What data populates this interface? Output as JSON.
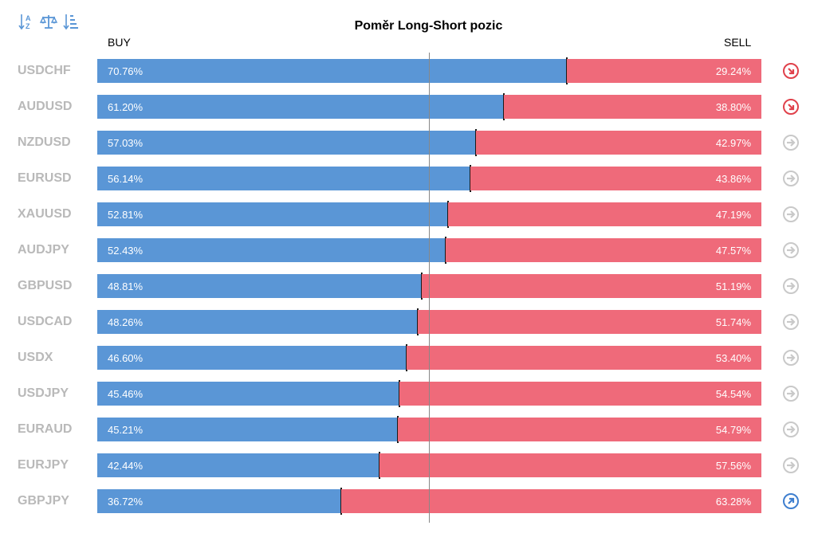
{
  "title": "Poměr Long-Short pozic",
  "buy_label": "BUY",
  "sell_label": "SELL",
  "toolbar": [
    {
      "icon": "sort-alpha-icon"
    },
    {
      "icon": "balance-scale-icon"
    },
    {
      "icon": "sort-amount-icon"
    }
  ],
  "colors": {
    "buy": "#5a96d6",
    "sell": "#ef6a7a",
    "trend_down": "#e0414b",
    "trend_neutral": "#c9c9c9",
    "trend_up": "#3f7fcf"
  },
  "chart_data": {
    "type": "bar",
    "categories": [
      "USDCHF",
      "AUDUSD",
      "NZDUSD",
      "EURUSD",
      "XAUUSD",
      "AUDJPY",
      "GBPUSD",
      "USDCAD",
      "USDX",
      "USDJPY",
      "EURAUD",
      "EURJPY",
      "GBPJPY"
    ],
    "series": [
      {
        "name": "BUY",
        "values": [
          70.76,
          61.2,
          57.03,
          56.14,
          52.81,
          52.43,
          48.81,
          48.26,
          46.6,
          45.46,
          45.21,
          42.44,
          36.72
        ]
      },
      {
        "name": "SELL",
        "values": [
          29.24,
          38.8,
          42.97,
          43.86,
          47.19,
          47.57,
          51.19,
          51.74,
          53.4,
          54.54,
          54.79,
          57.56,
          63.28
        ]
      }
    ],
    "ylim": [
      0,
      100
    ]
  },
  "rows": [
    {
      "symbol": "USDCHF",
      "buy": "70.76%",
      "sell": "29.24%",
      "trend": "down"
    },
    {
      "symbol": "AUDUSD",
      "buy": "61.20%",
      "sell": "38.80%",
      "trend": "down"
    },
    {
      "symbol": "NZDUSD",
      "buy": "57.03%",
      "sell": "42.97%",
      "trend": "neutral"
    },
    {
      "symbol": "EURUSD",
      "buy": "56.14%",
      "sell": "43.86%",
      "trend": "neutral"
    },
    {
      "symbol": "XAUUSD",
      "buy": "52.81%",
      "sell": "47.19%",
      "trend": "neutral"
    },
    {
      "symbol": "AUDJPY",
      "buy": "52.43%",
      "sell": "47.57%",
      "trend": "neutral"
    },
    {
      "symbol": "GBPUSD",
      "buy": "48.81%",
      "sell": "51.19%",
      "trend": "neutral"
    },
    {
      "symbol": "USDCAD",
      "buy": "48.26%",
      "sell": "51.74%",
      "trend": "neutral"
    },
    {
      "symbol": "USDX",
      "buy": "46.60%",
      "sell": "53.40%",
      "trend": "neutral"
    },
    {
      "symbol": "USDJPY",
      "buy": "45.46%",
      "sell": "54.54%",
      "trend": "neutral"
    },
    {
      "symbol": "EURAUD",
      "buy": "45.21%",
      "sell": "54.79%",
      "trend": "neutral"
    },
    {
      "symbol": "EURJPY",
      "buy": "42.44%",
      "sell": "57.56%",
      "trend": "neutral"
    },
    {
      "symbol": "GBPJPY",
      "buy": "36.72%",
      "sell": "63.28%",
      "trend": "up"
    }
  ]
}
